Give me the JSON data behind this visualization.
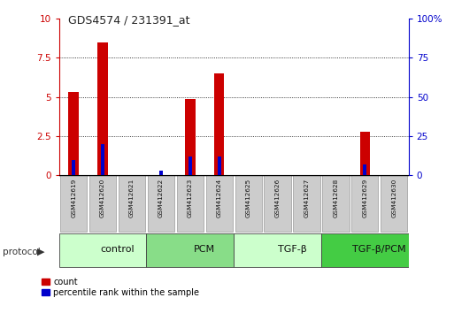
{
  "title": "GDS4574 / 231391_at",
  "samples": [
    "GSM412619",
    "GSM412620",
    "GSM412621",
    "GSM412622",
    "GSM412623",
    "GSM412624",
    "GSM412625",
    "GSM412626",
    "GSM412627",
    "GSM412628",
    "GSM412629",
    "GSM412630"
  ],
  "count_values": [
    5.3,
    8.5,
    0,
    0,
    4.9,
    6.5,
    0,
    0,
    0,
    0,
    2.8,
    0
  ],
  "percentile_values": [
    10,
    20,
    0,
    3,
    12,
    12,
    0,
    0,
    0,
    0,
    7,
    0
  ],
  "count_color": "#cc0000",
  "percentile_color": "#0000cc",
  "left_ylim": [
    0,
    10
  ],
  "right_ylim": [
    0,
    100
  ],
  "left_yticks": [
    0,
    2.5,
    5,
    7.5,
    10
  ],
  "right_yticks": [
    0,
    25,
    50,
    75,
    100
  ],
  "right_yticklabels": [
    "0",
    "25",
    "50",
    "75",
    "100%"
  ],
  "left_yticklabels": [
    "0",
    "2.5",
    "5",
    "7.5",
    "10"
  ],
  "protocol_groups": [
    {
      "label": "control",
      "start": 0,
      "end": 3,
      "color": "#ccffcc"
    },
    {
      "label": "PCM",
      "start": 3,
      "end": 6,
      "color": "#88dd88"
    },
    {
      "label": "TGF-β",
      "start": 6,
      "end": 9,
      "color": "#ccffcc"
    },
    {
      "label": "TGF-β/PCM",
      "start": 9,
      "end": 12,
      "color": "#44cc44"
    }
  ],
  "protocol_label": "protocol",
  "legend_count_label": "count",
  "legend_percentile_label": "percentile rank within the sample",
  "axis_label_color_left": "#cc0000",
  "axis_label_color_right": "#0000cc",
  "background_color": "#ffffff",
  "grid_color": "#000000",
  "sample_box_color": "#cccccc"
}
